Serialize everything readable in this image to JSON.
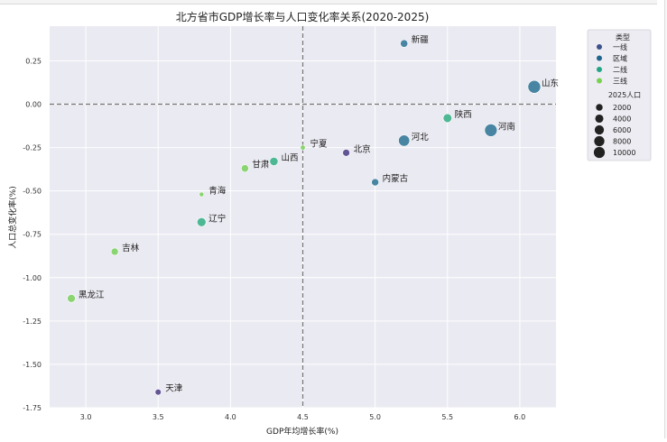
{
  "chart_data": {
    "type": "scatter",
    "title": "北方省市GDP增长率与人口变化率关系(2020-2025)",
    "xlabel": "GDP年均增长率(%)",
    "ylabel": "人口总变化率(%)",
    "xlim": [
      2.75,
      6.25
    ],
    "ylim": [
      -1.75,
      0.45
    ],
    "xticks": [
      "3.0",
      "3.5",
      "4.0",
      "4.5",
      "5.0",
      "5.5",
      "6.0"
    ],
    "yticks": [
      "0.25",
      "0.00",
      "-0.25",
      "-0.50",
      "-0.75",
      "-1.00",
      "-1.25",
      "-1.50",
      "-1.75"
    ],
    "reference_lines": {
      "x": 4.5,
      "y": 0.0
    },
    "grid": true,
    "legend": {
      "placement": "right-outside",
      "hue_title": "类型",
      "hue_entries": [
        {
          "label": "一线",
          "color": "#3b528b"
        },
        {
          "label": "区域",
          "color": "#21648d"
        },
        {
          "label": "二线",
          "color": "#21a685"
        },
        {
          "label": "三线",
          "color": "#7ad151"
        }
      ],
      "size_title": "2025人口",
      "size_entries": [
        {
          "label": "2000",
          "value": 2000
        },
        {
          "label": "4000",
          "value": 4000
        },
        {
          "label": "6000",
          "value": 6000
        },
        {
          "label": "8000",
          "value": 8000
        },
        {
          "label": "10000",
          "value": 10000
        }
      ]
    },
    "points": [
      {
        "name": "北京",
        "x": 4.8,
        "y": -0.28,
        "type": "一线",
        "pop": 2185,
        "color": "#5c4d8f"
      },
      {
        "name": "天津",
        "x": 3.5,
        "y": -1.66,
        "type": "一线",
        "pop": 1363,
        "color": "#5c4d8f"
      },
      {
        "name": "山东",
        "x": 6.1,
        "y": 0.1,
        "type": "区域",
        "pop": 10123,
        "color": "#3f7f9e"
      },
      {
        "name": "河南",
        "x": 5.8,
        "y": -0.15,
        "type": "区域",
        "pop": 9815,
        "color": "#3f7f9e"
      },
      {
        "name": "河北",
        "x": 5.2,
        "y": -0.21,
        "type": "区域",
        "pop": 7393,
        "color": "#3f7f9e"
      },
      {
        "name": "内蒙古",
        "x": 5.0,
        "y": -0.45,
        "type": "区域",
        "pop": 2380,
        "color": "#3f7f9e"
      },
      {
        "name": "新疆",
        "x": 5.2,
        "y": 0.35,
        "type": "区域",
        "pop": 2598,
        "color": "#3f7f9e"
      },
      {
        "name": "陕西",
        "x": 5.5,
        "y": -0.08,
        "type": "二线",
        "pop": 3954,
        "color": "#46b48e"
      },
      {
        "name": "山西",
        "x": 4.3,
        "y": -0.33,
        "type": "二线",
        "pop": 3466,
        "color": "#46b48e"
      },
      {
        "name": "辽宁",
        "x": 3.8,
        "y": -0.68,
        "type": "二线",
        "pop": 4182,
        "color": "#46b48e"
      },
      {
        "name": "宁夏",
        "x": 4.5,
        "y": -0.25,
        "type": "三线",
        "pop": 729,
        "color": "#86d36a"
      },
      {
        "name": "甘肃",
        "x": 4.1,
        "y": -0.37,
        "type": "三线",
        "pop": 2465,
        "color": "#86d36a"
      },
      {
        "name": "青海",
        "x": 3.8,
        "y": -0.52,
        "type": "三线",
        "pop": 594,
        "color": "#86d36a"
      },
      {
        "name": "吉林",
        "x": 3.2,
        "y": -0.85,
        "type": "三线",
        "pop": 2339,
        "color": "#86d36a"
      },
      {
        "name": "黑龙江",
        "x": 2.9,
        "y": -1.12,
        "type": "三线",
        "pop": 3062,
        "color": "#86d36a"
      }
    ]
  }
}
